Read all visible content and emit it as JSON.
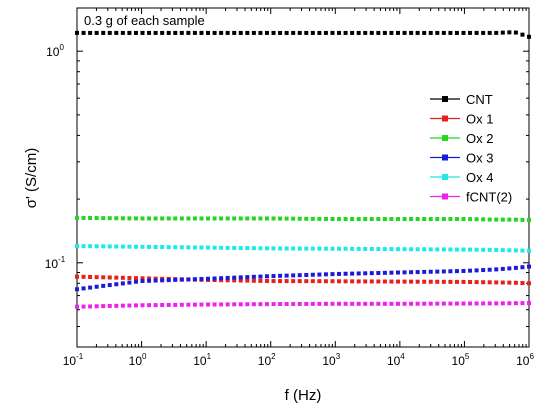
{
  "chart_data": {
    "type": "scatter",
    "title": "",
    "annotation": "0.3 g of each sample",
    "xlabel": "f (Hz)",
    "ylabel": "σ' (S/cm)",
    "x_scale": "log",
    "y_scale": "log",
    "xlim": [
      0.1,
      1000000
    ],
    "ylim": [
      0.04,
      1.6
    ],
    "x_ticks": [
      {
        "base": "10",
        "exp": "-1",
        "value": 0.1
      },
      {
        "base": "10",
        "exp": "0",
        "value": 1
      },
      {
        "base": "10",
        "exp": "1",
        "value": 10
      },
      {
        "base": "10",
        "exp": "2",
        "value": 100
      },
      {
        "base": "10",
        "exp": "3",
        "value": 1000
      },
      {
        "base": "10",
        "exp": "4",
        "value": 10000
      },
      {
        "base": "10",
        "exp": "5",
        "value": 100000
      },
      {
        "base": "10",
        "exp": "6",
        "value": 1000000
      }
    ],
    "y_ticks": [
      {
        "label": "10",
        "exp": "-1",
        "value": 0.1
      },
      {
        "label": "10",
        "exp": "0",
        "value": 1
      }
    ],
    "legend_position": "right",
    "grid": false,
    "series": [
      {
        "name": "CNT",
        "color": "#000000",
        "values": [
          1.22,
          1.22,
          1.22,
          1.22,
          1.22,
          1.22,
          1.22,
          1.22,
          1.23,
          1.17
        ]
      },
      {
        "name": "Ox 1",
        "color": "#e8201c",
        "values": [
          0.086,
          0.0845,
          0.083,
          0.082,
          0.0818,
          0.0815,
          0.0812,
          0.0808,
          0.0805,
          0.08
        ]
      },
      {
        "name": "Ox 2",
        "color": "#22d622",
        "values": [
          0.163,
          0.162,
          0.162,
          0.162,
          0.161,
          0.161,
          0.161,
          0.16,
          0.16,
          0.159
        ]
      },
      {
        "name": "Ox 3",
        "color": "#1a1ad8",
        "values": [
          0.075,
          0.082,
          0.084,
          0.0865,
          0.0885,
          0.09,
          0.0915,
          0.093,
          0.0945,
          0.096
        ]
      },
      {
        "name": "Ox 4",
        "color": "#1ee8e8",
        "values": [
          0.12,
          0.119,
          0.118,
          0.117,
          0.1165,
          0.116,
          0.1155,
          0.115,
          0.1145,
          0.114
        ]
      },
      {
        "name": "fCNT(2)",
        "color": "#ee22ee",
        "values": [
          0.062,
          0.063,
          0.0635,
          0.0638,
          0.064,
          0.064,
          0.0642,
          0.0643,
          0.0644,
          0.0645
        ]
      }
    ],
    "x": [
      0.1,
      1,
      10,
      100,
      1000,
      10000,
      100000,
      300000,
      600000,
      1000000
    ]
  }
}
